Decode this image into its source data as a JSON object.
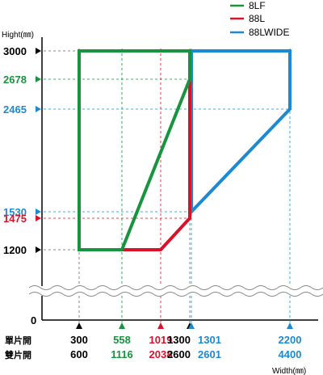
{
  "chart_data": {
    "type": "area",
    "x_axis_label": "Width(㎜)",
    "y_axis_label": "Hight(㎜)",
    "legend": {
      "placement": "top-right",
      "entries": [
        {
          "name": "8LF",
          "color": "#17943e"
        },
        {
          "name": "88L",
          "color": "#d9122a"
        },
        {
          "name": "88LWIDE",
          "color": "#1c8ad0"
        }
      ]
    },
    "y_ticks": [
      {
        "value": 3000,
        "label": "3000",
        "color": "#000000"
      },
      {
        "value": 2678,
        "label": "2678",
        "color": "#17943e"
      },
      {
        "value": 2465,
        "label": "2465",
        "color": "#1c8ad0"
      },
      {
        "value": 1530,
        "label": "1530",
        "color": "#1c8ad0"
      },
      {
        "value": 1475,
        "label": "1475",
        "color": "#d9122a"
      },
      {
        "value": 1200,
        "label": "1200",
        "color": "#000000"
      }
    ],
    "y_origin_label": "0",
    "x_row_labels": {
      "single": "單片開",
      "double": "雙片開"
    },
    "x_ticks": [
      {
        "value": 300,
        "single": "300",
        "double": "600",
        "color": "#000000"
      },
      {
        "value": 558,
        "single": "558",
        "double": "1116",
        "color": "#17943e"
      },
      {
        "value": 1019,
        "single": "1019",
        "double": "2038",
        "color": "#d9122a"
      },
      {
        "value": 1300,
        "single": "1300",
        "double": "2600",
        "color": "#000000"
      },
      {
        "value": 1301,
        "single": "1301",
        "double": "2601",
        "color": "#1c8ad0"
      },
      {
        "value": 2200,
        "single": "2200",
        "double": "4400",
        "color": "#1c8ad0"
      }
    ],
    "series": [
      {
        "name": "88LWIDE",
        "color": "#1c8ad0",
        "points": [
          [
            1301,
            3000
          ],
          [
            2200,
            3000
          ],
          [
            2200,
            2465
          ],
          [
            1301,
            1530
          ]
        ]
      },
      {
        "name": "88L",
        "color": "#d9122a",
        "points": [
          [
            300,
            1200
          ],
          [
            300,
            3000
          ],
          [
            1300,
            3000
          ],
          [
            1300,
            1475
          ],
          [
            1019,
            1200
          ]
        ]
      },
      {
        "name": "8LF",
        "color": "#17943e",
        "points": [
          [
            300,
            1200
          ],
          [
            300,
            3000
          ],
          [
            1300,
            3000
          ],
          [
            1300,
            2678
          ],
          [
            558,
            1200
          ]
        ]
      }
    ]
  }
}
